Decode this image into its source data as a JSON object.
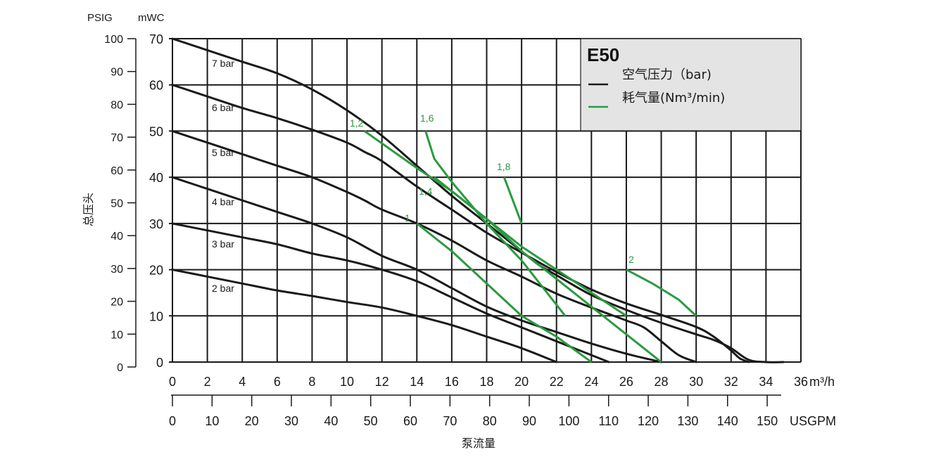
{
  "chart_data": {
    "type": "line",
    "model": "E50",
    "x_unit_primary": "m³/h",
    "x_unit_secondary": "USGPM",
    "xlabel": "泵流量",
    "ylabel": "总压头",
    "y_unit_left": "PSIG",
    "y_unit_right": "mWC",
    "xlim": [
      0,
      36
    ],
    "ylim": [
      0,
      70
    ],
    "x_ticks": [
      "0",
      "2",
      "4",
      "6",
      "8",
      "10",
      "12",
      "14",
      "16",
      "18",
      "20",
      "22",
      "24",
      "26",
      "28",
      "30",
      "32",
      "34",
      "36"
    ],
    "usgpm_ticks": [
      "0",
      "10",
      "20",
      "30",
      "40",
      "50",
      "60",
      "70",
      "80",
      "90",
      "100",
      "110",
      "120",
      "130",
      "140",
      "150"
    ],
    "mwc_ticks": [
      "0",
      "10",
      "20",
      "30",
      "40",
      "50",
      "60",
      "70"
    ],
    "psig_ticks": [
      "0",
      "10",
      "20",
      "30",
      "40",
      "50",
      "60",
      "70",
      "80",
      "90",
      "100"
    ],
    "grid": true,
    "legend": {
      "title": "E50",
      "air_pressure_label": "空气压力（bar)",
      "air_consumption_label": "耗气量(Nm³/min)",
      "air_pressure_color": "#1a1a1a",
      "air_consumption_color": "#2a9a3f",
      "placement": "top-right"
    },
    "pressure_series": [
      {
        "name": "7 bar",
        "x": [
          0,
          2,
          4,
          6,
          8,
          10,
          12,
          14,
          16,
          18,
          19.5,
          20,
          21,
          22,
          24,
          26,
          28,
          30,
          31,
          32,
          33,
          34,
          35
        ],
        "y": [
          70,
          67.5,
          65,
          62.5,
          59,
          54.5,
          49,
          42.5,
          36,
          30,
          25.5,
          24,
          21,
          18.8,
          14.5,
          11.3,
          8.5,
          6,
          4.8,
          3,
          0.5,
          0,
          0
        ]
      },
      {
        "name": "6 bar",
        "x": [
          0,
          2,
          4,
          6,
          8,
          10,
          11,
          12,
          14,
          16,
          18,
          20,
          22,
          24,
          26,
          28,
          30,
          31,
          32,
          32.5,
          33
        ],
        "y": [
          60,
          57.5,
          55,
          52.8,
          50.3,
          47.5,
          45.5,
          43.5,
          38,
          33,
          28,
          23.7,
          19.5,
          15.7,
          12.7,
          10.2,
          7.6,
          5.5,
          2.5,
          0.8,
          0
        ]
      },
      {
        "name": "5 bar",
        "x": [
          0,
          2,
          4,
          6,
          8,
          10,
          11,
          12,
          14,
          16,
          18,
          20,
          22,
          24,
          26,
          27,
          28,
          29,
          30
        ],
        "y": [
          50,
          47.5,
          45,
          42.5,
          40,
          36.8,
          35,
          33,
          30,
          26.3,
          22,
          18.5,
          14.8,
          11.8,
          9,
          7.5,
          4.5,
          1.5,
          0
        ]
      },
      {
        "name": "4 bar",
        "x": [
          0,
          2,
          4,
          6,
          8,
          10,
          12,
          14,
          16,
          18,
          20,
          22,
          24,
          26,
          28
        ],
        "y": [
          40,
          37.5,
          35,
          32.5,
          30,
          27,
          23,
          20,
          16,
          12,
          9,
          6.5,
          4,
          1.8,
          0
        ]
      },
      {
        "name": "3 bar",
        "x": [
          0,
          2,
          4,
          6,
          8,
          10,
          12,
          14,
          16,
          18,
          20,
          22,
          24,
          25
        ],
        "y": [
          30,
          28.5,
          27,
          25.5,
          23.5,
          22,
          20,
          17.5,
          14,
          10.5,
          7.5,
          4.5,
          1.5,
          0
        ]
      },
      {
        "name": "2 bar",
        "x": [
          0,
          2,
          4,
          6,
          8,
          10,
          12,
          14,
          16,
          18,
          20,
          22
        ],
        "y": [
          20,
          18.5,
          17,
          15.5,
          14.3,
          13,
          11.8,
          10,
          8,
          5.5,
          3,
          0
        ]
      }
    ],
    "air_consumption_series": [
      {
        "name": "1",
        "x": [
          14,
          16,
          18,
          20,
          22,
          24
        ],
        "y": [
          30,
          24,
          17,
          10,
          5.5,
          0
        ]
      },
      {
        "name": "1,2",
        "x": [
          11,
          14,
          16,
          18,
          20,
          24,
          28
        ],
        "y": [
          50,
          42,
          37,
          31,
          24,
          12,
          0
        ]
      },
      {
        "name": "1,4",
        "x": [
          15,
          18,
          20,
          24,
          26
        ],
        "y": [
          40,
          31,
          25,
          15,
          10
        ]
      },
      {
        "name": "1,6",
        "x": [
          14.5,
          15,
          16,
          18,
          20,
          22.5
        ],
        "y": [
          50,
          44,
          39,
          30,
          22,
          10
        ]
      },
      {
        "name": "1,8",
        "x": [
          19,
          20
        ],
        "y": [
          40,
          30
        ]
      },
      {
        "name": "2",
        "x": [
          26,
          27.5,
          29,
          30
        ],
        "y": [
          20,
          17,
          13.5,
          10
        ]
      }
    ],
    "curve_label_text": [
      "7 bar",
      "6 bar",
      "5 bar",
      "4 bar",
      "3 bar",
      "2 bar"
    ],
    "air_label_text": [
      "1",
      "1,2",
      "1,4",
      "1,6",
      "1,8",
      "2"
    ]
  }
}
